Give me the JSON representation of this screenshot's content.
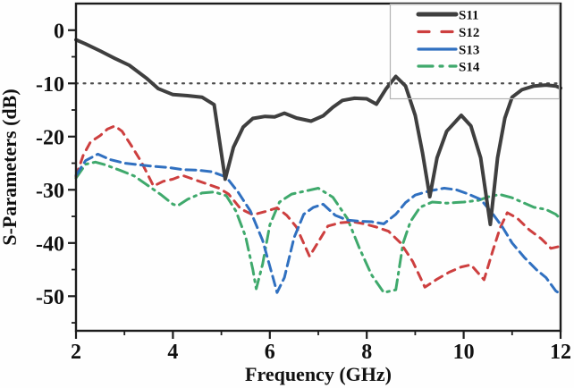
{
  "chart_data": {
    "type": "line",
    "title": "",
    "xlabel": "Frequency (GHz)",
    "ylabel": "S-Parameters (dB)",
    "xlim": [
      2,
      12
    ],
    "ylim": [
      -56.5,
      5
    ],
    "x_major_ticks": [
      2,
      4,
      6,
      8,
      10,
      12
    ],
    "x_minor_ticks": [
      3,
      5,
      7,
      9,
      11
    ],
    "y_major_ticks": [
      0,
      -10,
      -20,
      -30,
      -40,
      -50
    ],
    "y_minor_ticks": [
      -5,
      -15,
      -25,
      -35,
      -45,
      -55
    ],
    "grid": false,
    "axis_color": "#1c1c1c",
    "reference_line": {
      "y": -10,
      "style": "dotted",
      "color": "#4d4d4d"
    },
    "legend": {
      "position": "top-right",
      "items": [
        "S11",
        "S12",
        "S13",
        "S14"
      ]
    },
    "series": [
      {
        "name": "S11",
        "color": "#3f3f3f",
        "width": 4,
        "dash": null,
        "legend_dash": null,
        "points": [
          [
            2,
            -1.8
          ],
          [
            2.2,
            -2.6
          ],
          [
            2.5,
            -3.9
          ],
          [
            2.8,
            -5.3
          ],
          [
            3.1,
            -6.6
          ],
          [
            3.45,
            -9.0
          ],
          [
            3.7,
            -11.0
          ],
          [
            4.0,
            -12.1
          ],
          [
            4.3,
            -12.3
          ],
          [
            4.6,
            -12.6
          ],
          [
            4.85,
            -14.0
          ],
          [
            5.08,
            -28.0
          ],
          [
            5.25,
            -22.0
          ],
          [
            5.45,
            -18.2
          ],
          [
            5.65,
            -16.6
          ],
          [
            5.9,
            -16.2
          ],
          [
            6.1,
            -16.3
          ],
          [
            6.3,
            -15.6
          ],
          [
            6.55,
            -16.5
          ],
          [
            6.85,
            -17.1
          ],
          [
            7.1,
            -16.1
          ],
          [
            7.3,
            -14.5
          ],
          [
            7.5,
            -13.2
          ],
          [
            7.75,
            -12.8
          ],
          [
            8.0,
            -12.9
          ],
          [
            8.2,
            -13.9
          ],
          [
            8.4,
            -11.0
          ],
          [
            8.6,
            -8.7
          ],
          [
            8.8,
            -10.5
          ],
          [
            9.0,
            -16.0
          ],
          [
            9.15,
            -23.0
          ],
          [
            9.3,
            -31.3
          ],
          [
            9.45,
            -24.0
          ],
          [
            9.65,
            -19.0
          ],
          [
            9.95,
            -16.0
          ],
          [
            10.15,
            -18.0
          ],
          [
            10.35,
            -24.0
          ],
          [
            10.55,
            -36.5
          ],
          [
            10.7,
            -24.0
          ],
          [
            10.85,
            -16.5
          ],
          [
            11.0,
            -12.6
          ],
          [
            11.2,
            -11.2
          ],
          [
            11.45,
            -10.5
          ],
          [
            11.7,
            -10.3
          ],
          [
            11.9,
            -10.5
          ],
          [
            12.0,
            -10.9
          ]
        ]
      },
      {
        "name": "S12",
        "color": "#cd3f3f",
        "width": 3,
        "dash": "9 7",
        "legend_dash": "12 14",
        "points": [
          [
            2,
            -27.5
          ],
          [
            2.15,
            -23.5
          ],
          [
            2.3,
            -21.0
          ],
          [
            2.5,
            -19.8
          ],
          [
            2.65,
            -18.6
          ],
          [
            2.8,
            -18.0
          ],
          [
            2.95,
            -19.0
          ],
          [
            3.15,
            -21.8
          ],
          [
            3.35,
            -24.8
          ],
          [
            3.6,
            -29.3
          ],
          [
            3.8,
            -28.4
          ],
          [
            4.0,
            -28.0
          ],
          [
            4.2,
            -27.3
          ],
          [
            4.45,
            -28.1
          ],
          [
            4.7,
            -28.9
          ],
          [
            4.95,
            -29.7
          ],
          [
            5.15,
            -30.8
          ],
          [
            5.4,
            -33.6
          ],
          [
            5.65,
            -34.7
          ],
          [
            5.9,
            -34.1
          ],
          [
            6.15,
            -33.4
          ],
          [
            6.35,
            -34.8
          ],
          [
            6.55,
            -37.0
          ],
          [
            6.82,
            -42.5
          ],
          [
            7.0,
            -39.8
          ],
          [
            7.2,
            -36.8
          ],
          [
            7.45,
            -36.2
          ],
          [
            7.7,
            -36.0
          ],
          [
            7.95,
            -36.4
          ],
          [
            8.2,
            -37.0
          ],
          [
            8.45,
            -37.8
          ],
          [
            8.7,
            -40.0
          ],
          [
            8.95,
            -43.5
          ],
          [
            9.2,
            -48.3
          ],
          [
            9.45,
            -46.8
          ],
          [
            9.7,
            -45.5
          ],
          [
            9.95,
            -44.5
          ],
          [
            10.15,
            -44.1
          ],
          [
            10.42,
            -46.9
          ],
          [
            10.6,
            -41.5
          ],
          [
            10.75,
            -37.2
          ],
          [
            10.9,
            -34.3
          ],
          [
            11.1,
            -35.3
          ],
          [
            11.35,
            -37.5
          ],
          [
            11.6,
            -39.2
          ],
          [
            11.8,
            -41.0
          ],
          [
            12.0,
            -40.6
          ]
        ]
      },
      {
        "name": "S13",
        "color": "#3070c0",
        "width": 3,
        "dash": "11 6",
        "legend_dash": null,
        "points": [
          [
            2,
            -27.3
          ],
          [
            2.2,
            -24.5
          ],
          [
            2.45,
            -23.3
          ],
          [
            2.7,
            -24.3
          ],
          [
            3.0,
            -25.0
          ],
          [
            3.3,
            -25.3
          ],
          [
            3.6,
            -25.6
          ],
          [
            3.9,
            -25.8
          ],
          [
            4.2,
            -26.2
          ],
          [
            4.5,
            -26.3
          ],
          [
            4.8,
            -26.6
          ],
          [
            5.1,
            -27.6
          ],
          [
            5.35,
            -30.5
          ],
          [
            5.6,
            -34.0
          ],
          [
            5.85,
            -39.5
          ],
          [
            6.05,
            -46.0
          ],
          [
            6.15,
            -49.3
          ],
          [
            6.3,
            -46.5
          ],
          [
            6.5,
            -39.0
          ],
          [
            6.7,
            -34.6
          ],
          [
            6.9,
            -33.3
          ],
          [
            7.1,
            -32.7
          ],
          [
            7.35,
            -34.8
          ],
          [
            7.6,
            -35.7
          ],
          [
            7.85,
            -35.9
          ],
          [
            8.1,
            -36.0
          ],
          [
            8.35,
            -36.4
          ],
          [
            8.6,
            -34.6
          ],
          [
            8.8,
            -32.4
          ],
          [
            9.0,
            -31.0
          ],
          [
            9.3,
            -30.2
          ],
          [
            9.6,
            -29.7
          ],
          [
            9.85,
            -30.0
          ],
          [
            10.1,
            -30.8
          ],
          [
            10.35,
            -31.8
          ],
          [
            10.6,
            -34.5
          ],
          [
            10.8,
            -37.0
          ],
          [
            11.0,
            -40.0
          ],
          [
            11.25,
            -42.7
          ],
          [
            11.5,
            -45.0
          ],
          [
            11.7,
            -46.5
          ],
          [
            11.9,
            -49.0
          ],
          [
            12.0,
            -49.6
          ]
        ]
      },
      {
        "name": "S14",
        "color": "#3fa96c",
        "width": 3,
        "dash": "13 6 2.5 6",
        "legend_dash": "16 8 3 8",
        "points": [
          [
            2,
            -27.8
          ],
          [
            2.2,
            -25.2
          ],
          [
            2.4,
            -24.8
          ],
          [
            2.6,
            -25.3
          ],
          [
            2.9,
            -26.3
          ],
          [
            3.2,
            -27.4
          ],
          [
            3.5,
            -29.3
          ],
          [
            3.75,
            -30.9
          ],
          [
            4.0,
            -32.7
          ],
          [
            4.1,
            -33.0
          ],
          [
            4.3,
            -31.8
          ],
          [
            4.6,
            -30.6
          ],
          [
            4.85,
            -30.4
          ],
          [
            5.1,
            -31.1
          ],
          [
            5.3,
            -34.0
          ],
          [
            5.5,
            -38.8
          ],
          [
            5.65,
            -45.0
          ],
          [
            5.72,
            -48.6
          ],
          [
            5.85,
            -44.0
          ],
          [
            6.0,
            -36.6
          ],
          [
            6.2,
            -32.3
          ],
          [
            6.45,
            -30.8
          ],
          [
            6.7,
            -30.3
          ],
          [
            7.0,
            -29.7
          ],
          [
            7.3,
            -31.4
          ],
          [
            7.6,
            -35.4
          ],
          [
            7.85,
            -41.0
          ],
          [
            8.1,
            -46.0
          ],
          [
            8.35,
            -49.3
          ],
          [
            8.6,
            -48.8
          ],
          [
            8.75,
            -40.0
          ],
          [
            8.9,
            -36.0
          ],
          [
            9.1,
            -33.3
          ],
          [
            9.35,
            -32.3
          ],
          [
            9.65,
            -32.5
          ],
          [
            10.0,
            -32.3
          ],
          [
            10.3,
            -32.0
          ],
          [
            10.55,
            -31.2
          ],
          [
            10.75,
            -30.9
          ],
          [
            11.0,
            -31.5
          ],
          [
            11.2,
            -32.3
          ],
          [
            11.45,
            -33.3
          ],
          [
            11.7,
            -33.7
          ],
          [
            11.9,
            -34.6
          ],
          [
            12.0,
            -35.5
          ]
        ]
      }
    ]
  }
}
